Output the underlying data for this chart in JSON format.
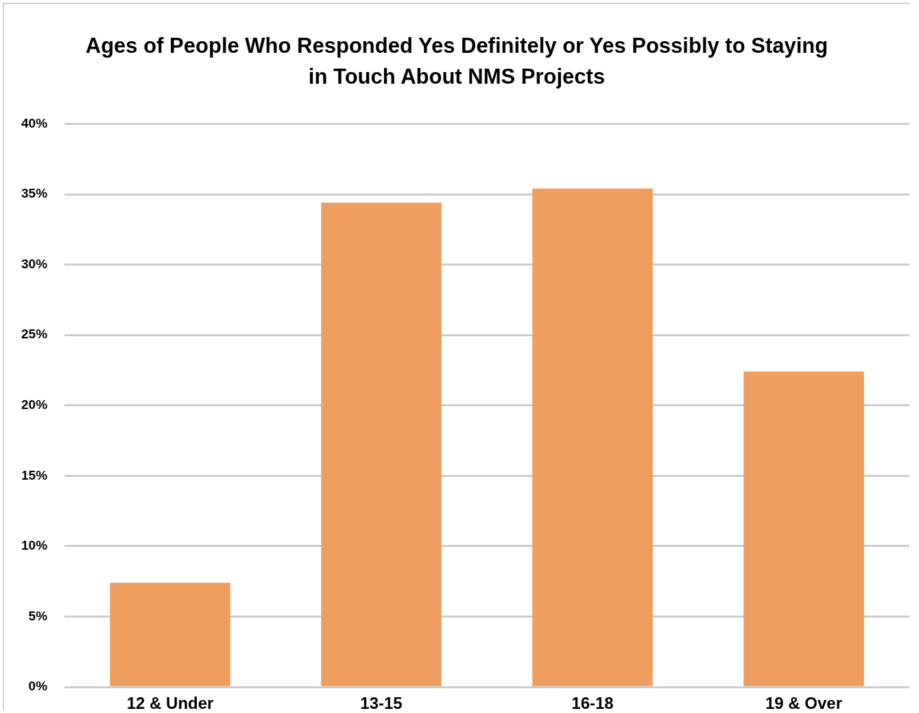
{
  "chart_data": {
    "type": "bar",
    "title": "Ages of People Who Responded Yes Definitely or Yes Possibly to Staying in Touch About NMS Projects",
    "categories": [
      "12 & Under",
      "13-15",
      "16-18",
      "19 & Over"
    ],
    "values": [
      7.4,
      34.4,
      35.4,
      22.4
    ],
    "color": "#ee9e5e",
    "ylim": [
      0,
      40
    ],
    "yticks": [
      {
        "value": 0,
        "label": "0%"
      },
      {
        "value": 5,
        "label": "5%"
      },
      {
        "value": 10,
        "label": "10%"
      },
      {
        "value": 15,
        "label": "15%"
      },
      {
        "value": 20,
        "label": "20%"
      },
      {
        "value": 25,
        "label": "25%"
      },
      {
        "value": 30,
        "label": "30%"
      },
      {
        "value": 35,
        "label": "35%"
      },
      {
        "value": 40,
        "label": "40%"
      }
    ],
    "grid": "y",
    "legend": false
  }
}
